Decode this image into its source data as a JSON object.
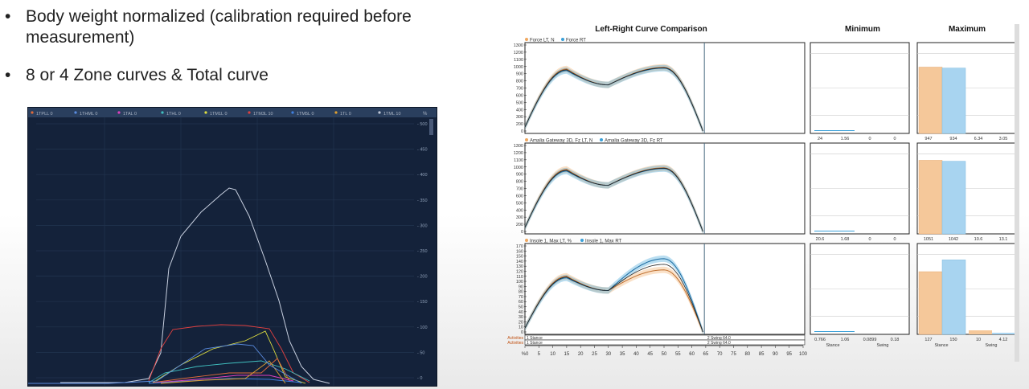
{
  "slide": {
    "bullets": [
      {
        "line1": "Body weight normalized (calibration required before",
        "line2": "measurement)"
      },
      {
        "line1": "8 or 4 Zone curves & Total curve",
        "line2": ""
      }
    ]
  },
  "zone_plot": {
    "legend": [
      {
        "label": "1TPLL",
        "value": "0",
        "color": "#e06a3a"
      },
      {
        "label": "1THML",
        "value": "0",
        "color": "#5a8ce0"
      },
      {
        "label": "1TAL",
        "value": "0",
        "color": "#e040c0"
      },
      {
        "label": "1THL",
        "value": "0",
        "color": "#40c0c0"
      },
      {
        "label": "1TM1L",
        "value": "0",
        "color": "#e0e040"
      },
      {
        "label": "1TM3L",
        "value": "10",
        "color": "#e04040"
      },
      {
        "label": "1TM5L",
        "value": "0",
        "color": "#4080e0"
      },
      {
        "label": "1TL",
        "value": "0",
        "color": "#e0a030"
      },
      {
        "label": "1TML",
        "value": "10",
        "color": "#c0c8d8"
      }
    ],
    "y_unit": "%",
    "y_ticks": [
      "500",
      "450",
      "400",
      "350",
      "300",
      "250",
      "200",
      "150",
      "100",
      "50",
      "0"
    ]
  },
  "comparison": {
    "title": "Left-Right Curve Comparison",
    "min_title": "Minimum",
    "max_title": "Maximum",
    "left_color": "#f0a860",
    "right_color": "#3aa0d8",
    "x_ticks": [
      "%0",
      "5",
      "10",
      "15",
      "20",
      "25",
      "30",
      "35",
      "40",
      "45",
      "50",
      "55",
      "60",
      "65",
      "70",
      "75",
      "80",
      "85",
      "90",
      "95",
      "100"
    ],
    "rows": [
      {
        "legend_left": "Force LT, N",
        "legend_right": "Force RT",
        "y_ticks": [
          "1300",
          "1200",
          "1100",
          "1000",
          "900",
          "800",
          "700",
          "600",
          "500",
          "400",
          "300",
          "200",
          "0"
        ],
        "min_labels": [
          "24",
          "1.56",
          "0",
          "0"
        ],
        "max_labels": [
          "947",
          "934",
          "6.34",
          "3.05"
        ],
        "max_bar_fracs": [
          0.73,
          0.72
        ]
      },
      {
        "legend_left": "Amalia Gateway 3D, Fz LT, N",
        "legend_right": "Amalia Gateway 3D, Fz RT",
        "y_ticks": [
          "1300",
          "1200",
          "1100",
          "1000",
          "900",
          "800",
          "700",
          "600",
          "500",
          "400",
          "300",
          "200",
          "0"
        ],
        "min_labels": [
          "20.6",
          "1.68",
          "0",
          "0"
        ],
        "max_labels": [
          "1051",
          "1042",
          "10.6",
          "13.1"
        ],
        "max_bar_fracs": [
          0.81,
          0.8
        ]
      },
      {
        "legend_left": "Insole 1, Max LT, %",
        "legend_right": "Insole 1, Max RT",
        "y_ticks": [
          "170",
          "160",
          "150",
          "140",
          "130",
          "120",
          "110",
          "100",
          "90",
          "80",
          "70",
          "60",
          "50",
          "40",
          "30",
          "20",
          "10",
          "0"
        ],
        "min_labels": [
          "0.766",
          "1.06",
          "0.0899",
          "0.18"
        ],
        "max_labels": [
          "127",
          "150",
          "10",
          "4.12"
        ],
        "max_bar_fracs": [
          0.69,
          0.82
        ],
        "min_sub": [
          "Stance",
          "Swing"
        ],
        "max_sub": [
          "Stance",
          "Swing"
        ]
      }
    ],
    "activities": [
      {
        "label": "Activities",
        "stance": "1 Stance",
        "swing": "2 Swing 64.0"
      },
      {
        "label": "Activities",
        "stance": "1 Stance",
        "swing": "2 Swing 64.0"
      }
    ]
  }
}
